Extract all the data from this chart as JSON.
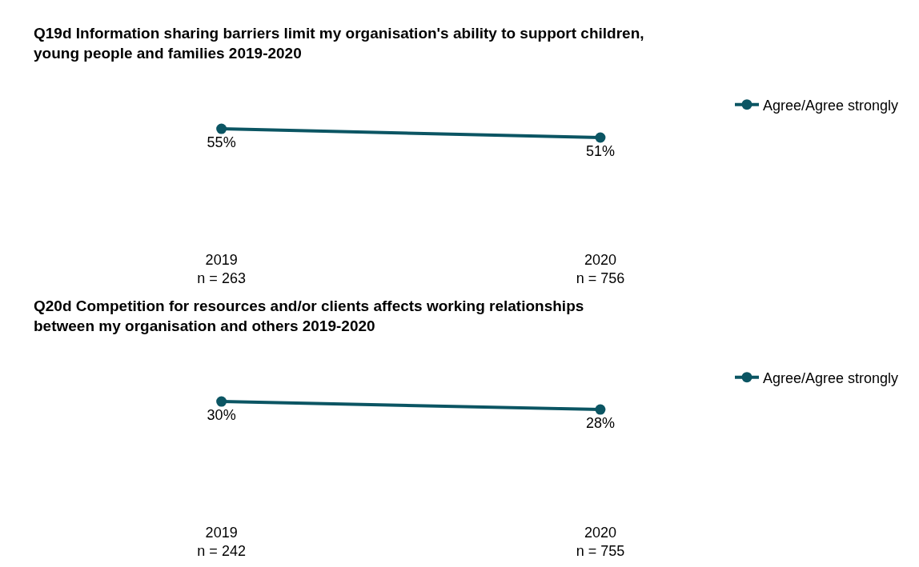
{
  "chart_data": [
    {
      "type": "line",
      "title": "Q19d Information sharing barriers limit my organisation's ability to support children,\nyoung people and families 2019-2020",
      "categories": [
        "2019\nn = 263",
        "2020\nn = 756"
      ],
      "series": [
        {
          "name": "Agree/Agree strongly",
          "color": "#0b5563",
          "values": [
            55,
            51
          ],
          "value_labels": [
            "55%",
            "51%"
          ]
        }
      ],
      "marker": "circle",
      "legend": "right",
      "tick_labels": "x"
    },
    {
      "type": "line",
      "title": "Q20d Competition for resources and/or clients affects working relationships\nbetween my organisation and others 2019-2020",
      "categories": [
        "2019\nn = 242",
        "2020\nn = 755"
      ],
      "series": [
        {
          "name": "Agree/Agree strongly",
          "color": "#0b5563",
          "values": [
            30,
            28
          ],
          "value_labels": [
            "30%",
            "28%"
          ]
        }
      ],
      "marker": "circle",
      "legend": "right",
      "tick_labels": "x"
    }
  ]
}
